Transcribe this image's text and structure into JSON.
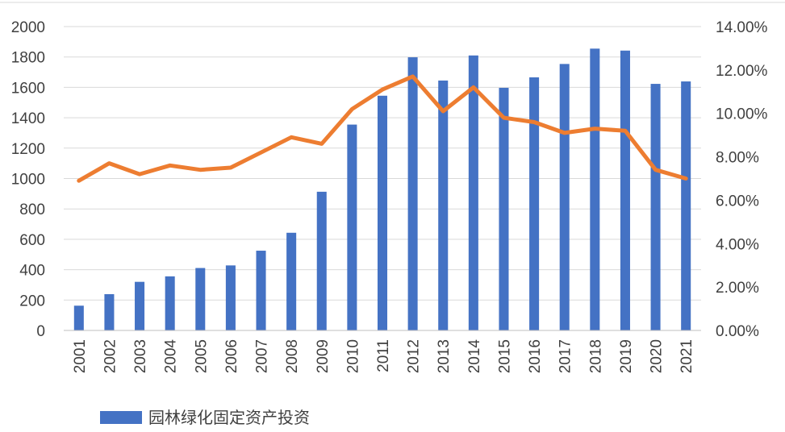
{
  "chart_data": {
    "type": "bar",
    "categories": [
      "2001",
      "2002",
      "2003",
      "2004",
      "2005",
      "2006",
      "2007",
      "2008",
      "2009",
      "2010",
      "2011",
      "2012",
      "2013",
      "2014",
      "2015",
      "2016",
      "2017",
      "2018",
      "2019",
      "2020",
      "2021"
    ],
    "series": [
      {
        "name": "园林绿化固定资产投资",
        "type": "bar",
        "axis": "left",
        "color": "#4472C4",
        "values": [
          163,
          239,
          320,
          356,
          411,
          428,
          525,
          643,
          913,
          1355,
          1545,
          1798,
          1645,
          1810,
          1597,
          1666,
          1754,
          1855,
          1842,
          1623,
          1639
        ]
      },
      {
        "type": "line",
        "axis": "right",
        "color": "#ED7D31",
        "values": [
          6.9,
          7.7,
          7.2,
          7.6,
          7.4,
          7.5,
          8.2,
          8.9,
          8.6,
          10.2,
          11.1,
          11.7,
          10.1,
          11.2,
          9.8,
          9.6,
          9.1,
          9.3,
          9.2,
          7.4,
          7.0
        ]
      }
    ],
    "y_left": {
      "min": 0,
      "max": 2000,
      "ticks": [
        0,
        200,
        400,
        600,
        800,
        1000,
        1200,
        1400,
        1600,
        1800,
        2000
      ]
    },
    "y_right": {
      "min": 0,
      "max": 14,
      "ticks": [
        "0.00%",
        "2.00%",
        "4.00%",
        "6.00%",
        "8.00%",
        "10.00%",
        "12.00%",
        "14.00%"
      ]
    },
    "grid": true,
    "legend": {
      "position": "bottom-left",
      "entries": [
        "园林绿化固定资产投资"
      ]
    }
  }
}
